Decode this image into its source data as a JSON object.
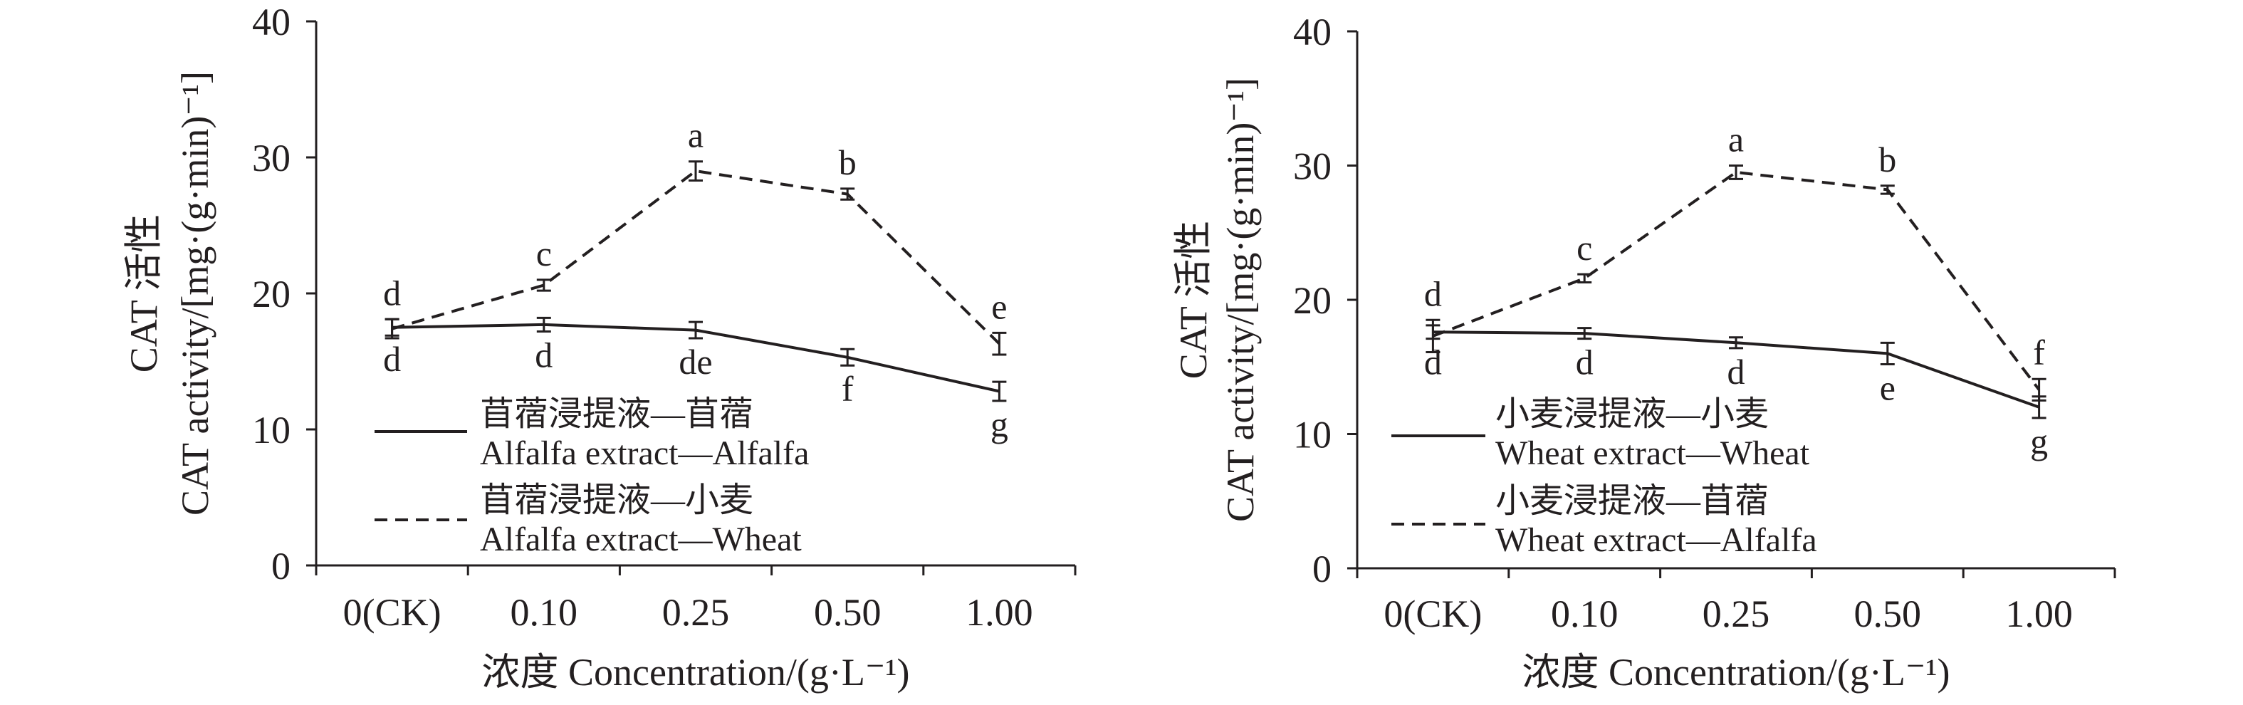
{
  "chart_data": [
    {
      "type": "line",
      "line_color": "#231f20",
      "categories": [
        "0(CK)",
        "0.10",
        "0.25",
        "0.50",
        "1.00"
      ],
      "xlabel": "浓度 Concentration/(g·L⁻¹)",
      "ylabel": [
        "CAT 活性",
        "CAT activity/[mg·(g·min)⁻¹]"
      ],
      "ylim": [
        0,
        40
      ],
      "yticks": [
        0,
        10,
        20,
        30,
        40
      ],
      "grid": false,
      "legend": "lower-left",
      "series": [
        {
          "name_cn": "苜蓿浸提液—苜蓿",
          "name": "Alfalfa extract—Alfalfa",
          "line_style": "solid",
          "values": [
            17.5,
            17.7,
            17.3,
            15.3,
            12.8
          ],
          "errors": [
            0.6,
            0.5,
            0.6,
            0.6,
            0.7
          ],
          "letters": [
            "d",
            "d",
            "de",
            "f",
            "g"
          ],
          "letter_position": "below"
        },
        {
          "name_cn": "苜蓿浸提液—小麦",
          "name": "Alfalfa extract—Wheat",
          "line_style": "dashed",
          "values": [
            17.4,
            20.6,
            29.0,
            27.3,
            16.3
          ],
          "errors": [
            0.7,
            0.4,
            0.7,
            0.4,
            0.8
          ],
          "letters": [
            "d",
            "c",
            "a",
            "b",
            "e"
          ],
          "letter_position": "above"
        }
      ]
    },
    {
      "type": "line",
      "line_color": "#231f20",
      "categories": [
        "0(CK)",
        "0.10",
        "0.25",
        "0.50",
        "1.00"
      ],
      "xlabel": "浓度 Concentration/(g·L⁻¹)",
      "ylabel": [
        "CAT 活性",
        "CAT activity/[mg·(g·min)⁻¹]"
      ],
      "ylim": [
        0,
        40
      ],
      "yticks": [
        0,
        10,
        20,
        30,
        40
      ],
      "grid": false,
      "legend": "lower-left",
      "series": [
        {
          "name_cn": "小麦浸提液—小麦",
          "name": "Wheat extract—Wheat",
          "line_style": "solid",
          "values": [
            17.6,
            17.5,
            16.8,
            16.0,
            12.0
          ],
          "errors": [
            0.5,
            0.4,
            0.4,
            0.8,
            0.8
          ],
          "letters": [
            "d",
            "d",
            "d",
            "e",
            "g"
          ],
          "letter_position": "below"
        },
        {
          "name_cn": "小麦浸提液—苜蓿",
          "name": "Wheat extract—Alfalfa",
          "line_style": "dashed",
          "values": [
            17.3,
            21.6,
            29.5,
            28.2,
            13.3
          ],
          "errors": [
            1.2,
            0.3,
            0.5,
            0.3,
            0.8
          ],
          "letters": [
            "d",
            "c",
            "a",
            "b",
            "f"
          ],
          "letter_position": "above"
        }
      ]
    }
  ]
}
